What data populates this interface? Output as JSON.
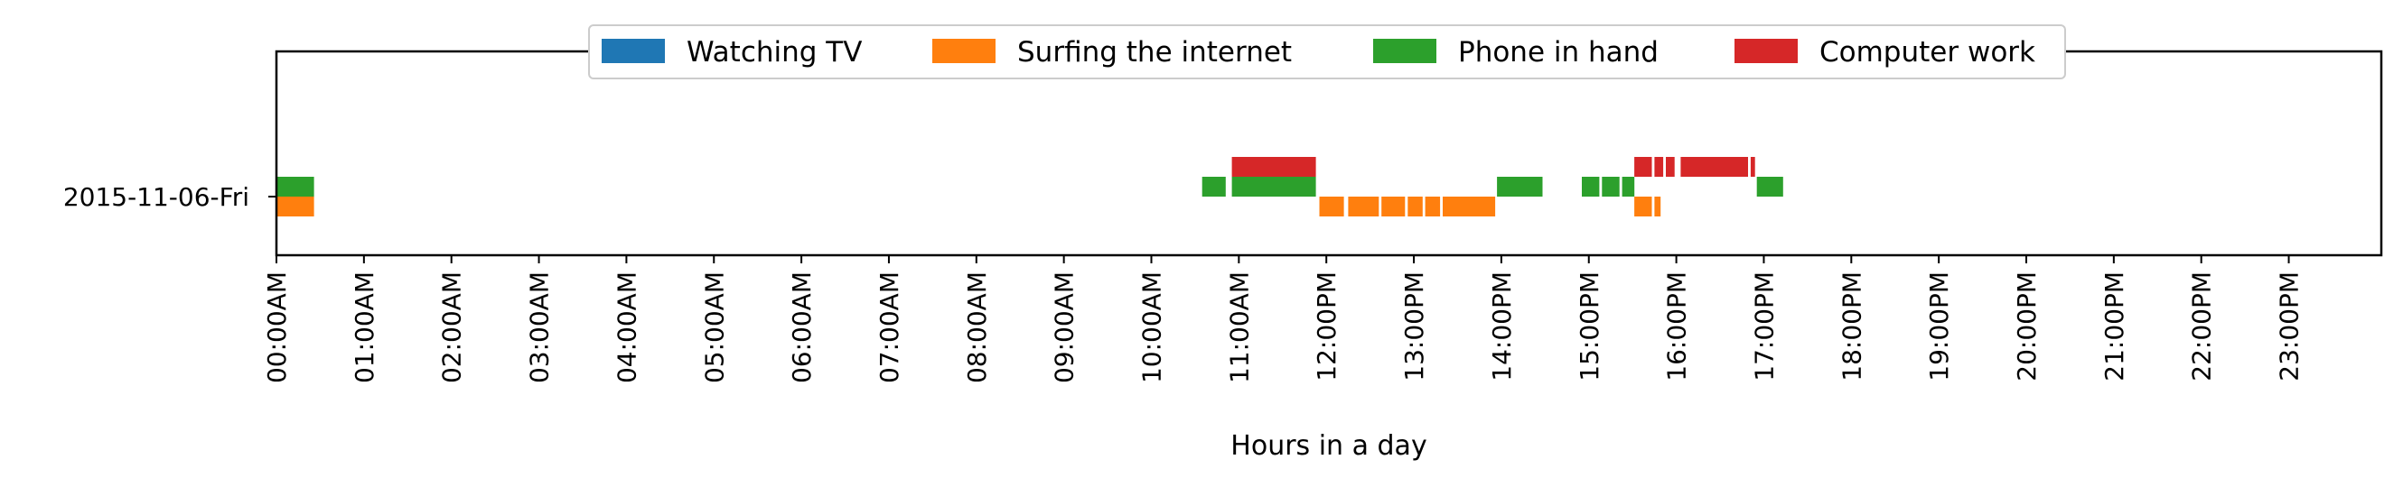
{
  "chart_data": {
    "type": "timeline",
    "xlabel": "Hours in a day",
    "ylabel": "",
    "xlim": [
      0,
      24
    ],
    "grid": false,
    "legend_position": "top-center",
    "x_tick_labels": [
      "00:00AM",
      "01:00AM",
      "02:00AM",
      "03:00AM",
      "04:00AM",
      "05:00AM",
      "06:00AM",
      "07:00AM",
      "08:00AM",
      "09:00AM",
      "10:00AM",
      "11:00AM",
      "12:00PM",
      "13:00PM",
      "14:00PM",
      "15:00PM",
      "16:00PM",
      "17:00PM",
      "18:00PM",
      "19:00PM",
      "20:00PM",
      "21:00PM",
      "22:00PM",
      "23:00PM"
    ],
    "categories": [
      "2015-11-06-Fri"
    ],
    "series": [
      {
        "name": "Watching TV",
        "color": "#1f77b4",
        "lane": 0,
        "intervals": []
      },
      {
        "name": "Surfing the internet",
        "color": "#ff7f0e",
        "lane": 1,
        "intervals": [
          [
            0.0,
            0.43
          ],
          [
            11.92,
            12.2
          ],
          [
            12.25,
            12.6
          ],
          [
            12.63,
            12.9
          ],
          [
            12.93,
            13.1
          ],
          [
            13.13,
            13.3
          ],
          [
            13.33,
            13.93
          ],
          [
            15.52,
            15.72
          ],
          [
            15.75,
            15.82
          ]
        ]
      },
      {
        "name": "Phone in hand",
        "color": "#2ca02c",
        "lane": 2,
        "intervals": [
          [
            0.0,
            0.43
          ],
          [
            10.58,
            10.85
          ],
          [
            10.92,
            11.88
          ],
          [
            13.95,
            14.47
          ],
          [
            14.92,
            15.12
          ],
          [
            15.15,
            15.35
          ],
          [
            15.38,
            15.52
          ],
          [
            16.92,
            17.22
          ]
        ]
      },
      {
        "name": "Computer work",
        "color": "#d62728",
        "lane": 3,
        "intervals": [
          [
            10.92,
            11.88
          ],
          [
            15.52,
            15.72
          ],
          [
            15.75,
            15.85
          ],
          [
            15.88,
            15.98
          ],
          [
            16.05,
            16.82
          ],
          [
            16.85,
            16.9
          ]
        ]
      }
    ]
  }
}
